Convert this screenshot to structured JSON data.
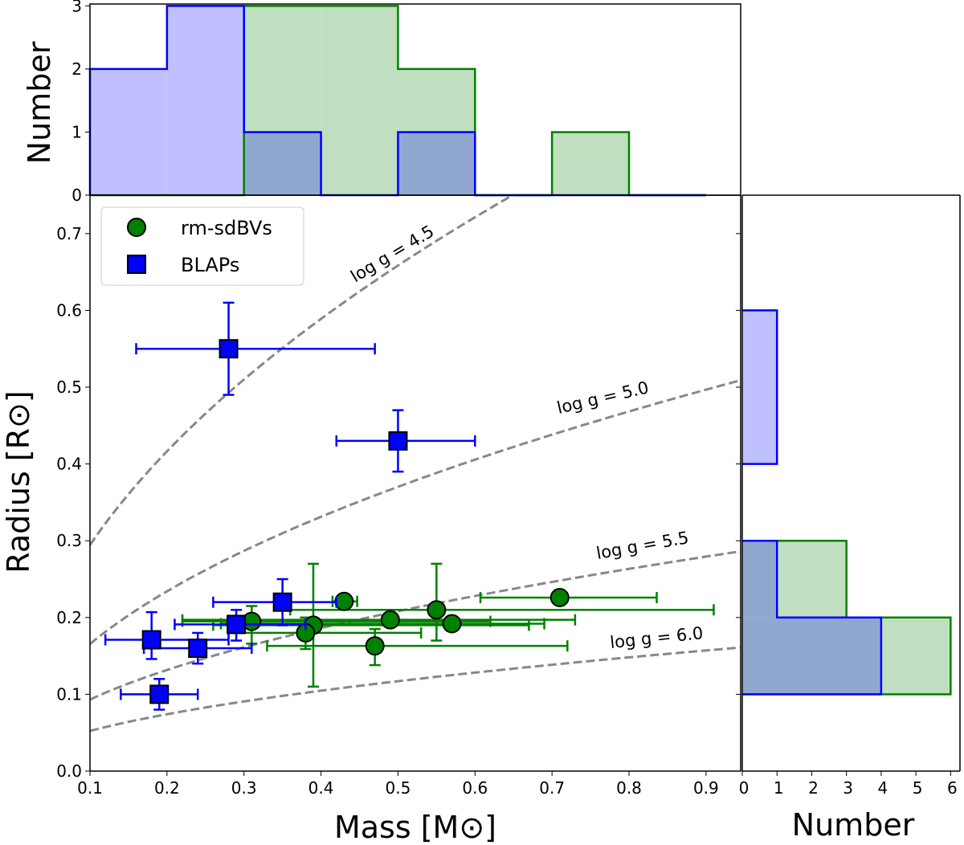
{
  "chart_data": {
    "type": "scatter",
    "panels": {
      "main": {
        "xlabel": "Mass [M⊙]",
        "ylabel": "Radius [R⊙]",
        "xlim": [
          0.1,
          0.945
        ],
        "ylim": [
          0.0,
          0.75
        ],
        "xticks": [
          "0.1",
          "0.2",
          "0.3",
          "0.4",
          "0.5",
          "0.6",
          "0.7",
          "0.8",
          "0.9"
        ],
        "yticks": [
          "0.0",
          "0.1",
          "0.2",
          "0.3",
          "0.4",
          "0.5",
          "0.6",
          "0.7"
        ],
        "legend_placement": "upper-left",
        "series": [
          {
            "name": "rm-sdBVs",
            "marker": "circle",
            "color": "#008000",
            "points": [
              {
                "x": 0.43,
                "y": 0.221,
                "xerr": [
                  0.415,
                  0.447
                ],
                "yerr": [
                  0.216,
                  0.226
                ]
              },
              {
                "x": 0.71,
                "y": 0.226,
                "xerr": [
                  0.607,
                  0.836
                ],
                "yerr": [
                  0.219,
                  0.233
                ]
              },
              {
                "x": 0.55,
                "y": 0.21,
                "xerr": [
                  0.36,
                  0.91
                ],
                "yerr": [
                  0.17,
                  0.27
                ]
              },
              {
                "x": 0.49,
                "y": 0.197,
                "xerr": [
                  0.22,
                  0.73
                ],
                "yerr": [
                  0.19,
                  0.205
                ]
              },
              {
                "x": 0.57,
                "y": 0.192,
                "xerr": [
                  0.27,
                  0.69
                ],
                "yerr": [
                  0.185,
                  0.2
                ]
              },
              {
                "x": 0.39,
                "y": 0.19,
                "xerr": [
                  0.26,
                  0.67
                ],
                "yerr": [
                  0.11,
                  0.27
                ]
              },
              {
                "x": 0.31,
                "y": 0.195,
                "xerr": [
                  0.22,
                  0.62
                ],
                "yerr": [
                  0.166,
                  0.215
                ]
              },
              {
                "x": 0.38,
                "y": 0.18,
                "xerr": [
                  0.28,
                  0.53
                ],
                "yerr": [
                  0.159,
                  0.2
                ]
              },
              {
                "x": 0.47,
                "y": 0.163,
                "xerr": [
                  0.33,
                  0.72
                ],
                "yerr": [
                  0.138,
                  0.185
                ]
              }
            ]
          },
          {
            "name": "BLAPs",
            "marker": "square",
            "color": "#0000ff",
            "points": [
              {
                "x": 0.28,
                "y": 0.55,
                "xerr": [
                  0.16,
                  0.47
                ],
                "yerr": [
                  0.49,
                  0.61
                ]
              },
              {
                "x": 0.5,
                "y": 0.43,
                "xerr": [
                  0.42,
                  0.6
                ],
                "yerr": [
                  0.39,
                  0.47
                ]
              },
              {
                "x": 0.35,
                "y": 0.22,
                "xerr": [
                  0.26,
                  0.42
                ],
                "yerr": [
                  0.19,
                  0.25
                ]
              },
              {
                "x": 0.29,
                "y": 0.191,
                "xerr": [
                  0.21,
                  0.38
                ],
                "yerr": [
                  0.17,
                  0.21
                ]
              },
              {
                "x": 0.18,
                "y": 0.171,
                "xerr": [
                  0.12,
                  0.28
                ],
                "yerr": [
                  0.146,
                  0.207
                ]
              },
              {
                "x": 0.24,
                "y": 0.16,
                "xerr": [
                  0.17,
                  0.31
                ],
                "yerr": [
                  0.14,
                  0.18
                ]
              },
              {
                "x": 0.19,
                "y": 0.1,
                "xerr": [
                  0.14,
                  0.24
                ],
                "yerr": [
                  0.08,
                  0.12
                ]
              }
            ]
          }
        ],
        "curves": [
          {
            "logg": 4.5,
            "label": "log g = 4.5"
          },
          {
            "logg": 5.0,
            "label": "log g = 5.0"
          },
          {
            "logg": 5.5,
            "label": "log g = 5.5"
          },
          {
            "logg": 6.0,
            "label": "log g = 6.0"
          }
        ],
        "curve_color": "#888888"
      },
      "top_hist": {
        "type": "histogram",
        "ylabel": "Number",
        "yticks": [
          "0",
          "1",
          "2",
          "3"
        ],
        "ylim": [
          0,
          3.03
        ],
        "bin_edges": [
          0.1,
          0.2,
          0.3,
          0.4,
          0.5,
          0.6,
          0.7,
          0.8,
          0.9
        ],
        "series": [
          {
            "name": "rm-sdBVs",
            "counts": [
              0,
              0,
              3,
              3,
              2,
              0,
              1,
              0
            ],
            "fill": "#c0dfc0",
            "edge": "#008000"
          },
          {
            "name": "BLAPs",
            "counts": [
              2,
              3,
              1,
              0,
              1,
              0,
              0,
              0
            ],
            "fill": "#c0c0ff",
            "edge": "#0000ff"
          }
        ],
        "overlap_fill": "#90a8d0"
      },
      "right_hist": {
        "type": "histogram",
        "xlabel": "Number",
        "xticks": [
          "0",
          "1",
          "2",
          "3",
          "4",
          "5",
          "6"
        ],
        "xlim": [
          0,
          6.27
        ],
        "bin_edges": [
          0.1,
          0.2,
          0.3,
          0.4,
          0.5,
          0.6
        ],
        "series": [
          {
            "name": "rm-sdBVs",
            "counts": [
              6,
              3,
              0,
              0,
              0
            ]
          },
          {
            "name": "BLAPs",
            "counts": [
              4,
              1,
              0,
              1,
              1
            ]
          }
        ]
      }
    }
  }
}
